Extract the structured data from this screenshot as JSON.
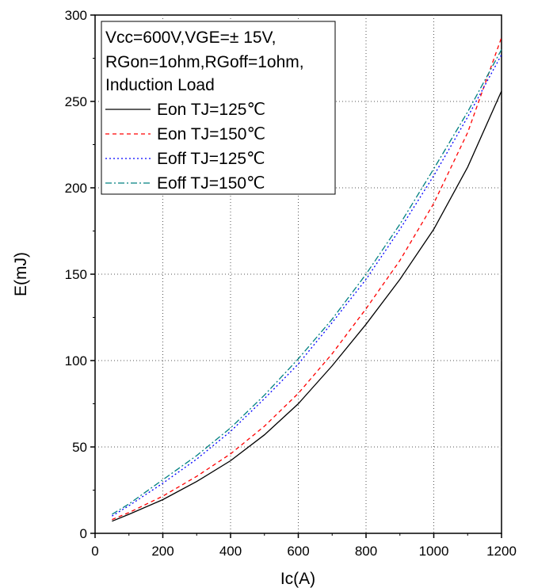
{
  "chart_data": {
    "type": "line",
    "xlabel": "Ic(A)",
    "ylabel": "E(mJ)",
    "xlim": [
      0,
      1200
    ],
    "ylim": [
      0,
      300
    ],
    "x_ticks": [
      "0",
      "200",
      "400",
      "600",
      "800",
      "1000",
      "1200"
    ],
    "y_ticks": [
      "0",
      "50",
      "100",
      "150",
      "200",
      "250",
      "300"
    ],
    "grid": true,
    "legend_position": "top-left",
    "conditions": [
      "Vcc=600V,VGE=± 15V,",
      "RGon=1ohm,RGoff=1ohm,",
      "Induction Load"
    ],
    "x": [
      50,
      100,
      200,
      300,
      400,
      500,
      600,
      700,
      800,
      900,
      1000,
      1100,
      1200
    ],
    "series": [
      {
        "name": "Eon TJ=125℃",
        "color": "#000000",
        "dash": "",
        "values": [
          7,
          11,
          19.5,
          30,
          42,
          57,
          75,
          97,
          121,
          147,
          176,
          212,
          256
        ]
      },
      {
        "name": "Eon TJ=150℃",
        "color": "#ff0000",
        "dash": "5,4",
        "values": [
          8,
          12,
          21.5,
          33,
          46,
          62,
          81,
          104,
          130,
          158,
          191,
          232,
          287
        ]
      },
      {
        "name": "Eoff TJ=125℃",
        "color": "#0000ff",
        "dash": "2,3",
        "values": [
          10,
          16,
          29,
          43,
          59,
          78,
          98,
          122,
          147,
          176,
          207,
          241,
          277
        ]
      },
      {
        "name": "Eoff TJ=150℃",
        "color": "#008080",
        "dash": "8,3,2,3",
        "values": [
          11,
          17,
          31,
          45,
          61,
          80,
          101,
          124,
          150,
          179,
          211,
          244,
          280
        ]
      }
    ]
  }
}
